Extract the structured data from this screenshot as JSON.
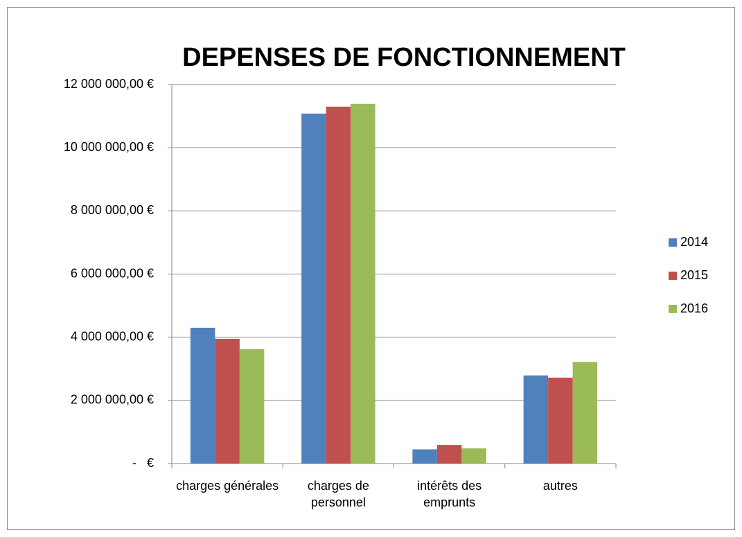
{
  "chart_data": {
    "type": "bar",
    "title": "DEPENSES DE FONCTIONNEMENT",
    "categories": [
      "charges générales",
      "charges de personnel",
      "intérêts des emprunts",
      "autres"
    ],
    "series": [
      {
        "name": "2014",
        "color": "#4f81bd",
        "values": [
          4300000,
          11080000,
          450000,
          2790000
        ]
      },
      {
        "name": "2015",
        "color": "#c0504d",
        "values": [
          3950000,
          11300000,
          590000,
          2720000
        ]
      },
      {
        "name": "2016",
        "color": "#9bbb59",
        "values": [
          3620000,
          11390000,
          480000,
          3220000
        ]
      }
    ],
    "ylim": [
      0,
      12000000
    ],
    "yticks": [
      {
        "value": 0,
        "label": "-   €"
      },
      {
        "value": 2000000,
        "label": "2 000 000,00 €"
      },
      {
        "value": 4000000,
        "label": "4 000 000,00 €"
      },
      {
        "value": 6000000,
        "label": "6 000 000,00 €"
      },
      {
        "value": 8000000,
        "label": "8 000 000,00 €"
      },
      {
        "value": 10000000,
        "label": "10 000 000,00 €"
      },
      {
        "value": 12000000,
        "label": "12 000 000,00 €"
      }
    ],
    "grid": true,
    "legend": "right"
  }
}
